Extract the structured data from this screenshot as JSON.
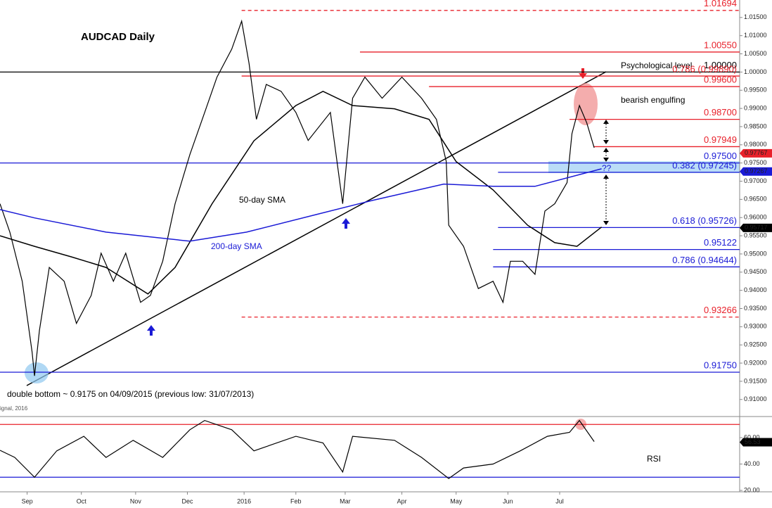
{
  "chart_data": [
    {
      "type": "line",
      "title": "AUDCAD Daily",
      "xlim": [
        0,
        300
      ],
      "ylim": [
        0.9057,
        1.0198
      ],
      "yticks": [
        {
          "value": 0.91,
          "label": "0.91000"
        },
        {
          "value": 0.915,
          "label": "0.91500"
        },
        {
          "value": 0.92,
          "label": "0.92000"
        },
        {
          "value": 0.925,
          "label": "0.92500"
        },
        {
          "value": 0.93,
          "label": "0.93000"
        },
        {
          "value": 0.935,
          "label": "0.93500"
        },
        {
          "value": 0.94,
          "label": "0.94000"
        },
        {
          "value": 0.945,
          "label": "0.94500"
        },
        {
          "value": 0.95,
          "label": "0.95000"
        },
        {
          "value": 0.955,
          "label": "0.95500"
        },
        {
          "value": 0.96,
          "label": "0.96000"
        },
        {
          "value": 0.965,
          "label": "0.96500"
        },
        {
          "value": 0.97,
          "label": "0.97000"
        },
        {
          "value": 0.975,
          "label": "0.97500"
        },
        {
          "value": 0.98,
          "label": "0.98000"
        },
        {
          "value": 0.985,
          "label": "0.98500"
        },
        {
          "value": 0.99,
          "label": "0.99000"
        },
        {
          "value": 0.995,
          "label": "0.99500"
        },
        {
          "value": 1.0,
          "label": "1.00000"
        },
        {
          "value": 1.005,
          "label": "1.00500"
        },
        {
          "value": 1.01,
          "label": "1.01000"
        },
        {
          "value": 1.015,
          "label": "1.01500"
        }
      ],
      "series": [
        {
          "color": "#000000",
          "x": [
            0,
            4,
            9,
            13,
            14,
            16,
            20,
            26,
            31,
            37,
            41,
            46,
            51,
            57,
            61,
            66,
            71,
            77,
            83,
            88,
            94,
            98,
            101,
            104,
            108,
            114,
            120,
            125,
            134,
            139,
            143,
            148,
            155,
            163,
            171,
            177,
            181,
            182,
            188,
            194,
            200,
            204,
            207,
            212,
            217,
            221,
            225,
            230,
            232,
            235,
            238,
            241
          ],
          "values": [
            0.9638,
            0.956,
            0.9425,
            0.9231,
            0.9165,
            0.929,
            0.9463,
            0.9425,
            0.9309,
            0.9386,
            0.9502,
            0.9425,
            0.9502,
            0.9367,
            0.9386,
            0.948,
            0.9638,
            0.9773,
            0.9889,
            0.9986,
            1.0063,
            1.014,
            1.0024,
            0.987,
            0.9966,
            0.9947,
            0.9889,
            0.9812,
            0.9889,
            0.9638,
            0.9928,
            0.9986,
            0.9928,
            0.9986,
            0.9928,
            0.987,
            0.9754,
            0.9579,
            0.9521,
            0.9405,
            0.9425,
            0.9367,
            0.948,
            0.948,
            0.9444,
            0.9618,
            0.9638,
            0.9696,
            0.9831,
            0.9908,
            0.986,
            0.9792
          ]
        },
        {
          "name": "50-day SMA",
          "color": "#000000",
          "x": [
            0,
            14,
            29,
            43,
            60,
            71,
            86,
            103,
            120,
            131,
            143,
            160,
            174,
            185,
            200,
            214,
            225,
            234,
            244
          ],
          "values": [
            0.955,
            0.9521,
            0.9492,
            0.9463,
            0.939,
            0.9463,
            0.9638,
            0.9811,
            0.9908,
            0.9947,
            0.9908,
            0.9899,
            0.987,
            0.9754,
            0.9676,
            0.9579,
            0.9531,
            0.9521,
            0.9574
          ]
        },
        {
          "name": "200-day SMA",
          "color": "#1a1ad6",
          "x": [
            0,
            14,
            43,
            77,
            100,
            128,
            151,
            180,
            200,
            217,
            244
          ],
          "values": [
            0.9622,
            0.9599,
            0.956,
            0.9535,
            0.956,
            0.9608,
            0.9647,
            0.9692,
            0.9686,
            0.9686,
            0.9734
          ]
        }
      ],
      "levels": [
        {
          "value": 1.01694,
          "label": "1.01694",
          "color": "#e8202a",
          "from": 98,
          "dashed": true
        },
        {
          "value": 1.0055,
          "label": "1.00550",
          "color": "#e8202a",
          "from": 146,
          "dashed": false
        },
        {
          "value": 1.0,
          "label": "1.00000",
          "color": "#000000",
          "from": 0,
          "dashed": false
        },
        {
          "value": 0.9989,
          "label": "0.786 (0.99890)",
          "color": "#e8202a",
          "from": 98,
          "dashed": false
        },
        {
          "value": 0.996,
          "label": "0.99600",
          "color": "#e8202a",
          "from": 174,
          "dashed": false
        },
        {
          "value": 0.987,
          "label": "0.98700",
          "color": "#e8202a",
          "from": 231,
          "dashed": false
        },
        {
          "value": 0.97949,
          "label": "0.97949",
          "color": "#e8202a",
          "from": 241,
          "dashed": false
        },
        {
          "value": 0.975,
          "label": "0.97500",
          "color": "#1a1ad6",
          "from": 0,
          "dashed": false
        },
        {
          "value": 0.97245,
          "label": "0.382 (0.97245)",
          "color": "#1a1ad6",
          "from": 202,
          "dashed": false
        },
        {
          "value": 0.95726,
          "label": "0.618 (0.95726)",
          "color": "#1a1ad6",
          "from": 202,
          "dashed": false
        },
        {
          "value": 0.95122,
          "label": "0.95122",
          "color": "#1a1ad6",
          "from": 200,
          "dashed": false
        },
        {
          "value": 0.94644,
          "label": "0.786 (0.94644)",
          "color": "#1a1ad6",
          "from": 200,
          "dashed": false
        },
        {
          "value": 0.93266,
          "label": "0.93266",
          "color": "#e8202a",
          "from": 98,
          "dashed": true
        },
        {
          "value": 0.9175,
          "label": "0.91750",
          "color": "#1a1ad6",
          "from": 0,
          "dashed": false
        }
      ],
      "price_tags": [
        {
          "value": 0.97767,
          "label": "0.97767",
          "color": "#e8202a"
        },
        {
          "value": 0.97267,
          "label": "0.97267",
          "color": "#1a1ad6"
        },
        {
          "value": 0.95717,
          "label": "0.95717",
          "color": "#000000"
        }
      ],
      "level_note": "Psychological level",
      "pattern_note": "bearish engulfing",
      "question": "??",
      "double_bottom_note": "double bottom ~ 0.9175 on 04/09/2015 (previous low: 31/07/2013)",
      "source": "ignal, 2016"
    },
    {
      "type": "line",
      "title": "RSI",
      "xlim": [
        0,
        300
      ],
      "ylim": [
        20,
        74.4
      ],
      "xticks": [
        {
          "value": 11,
          "label": "Sep"
        },
        {
          "value": 33,
          "label": "Oct"
        },
        {
          "value": 55,
          "label": "Nov"
        },
        {
          "value": 76,
          "label": "Dec"
        },
        {
          "value": 99,
          "label": "2016"
        },
        {
          "value": 120,
          "label": "Feb"
        },
        {
          "value": 140,
          "label": "Mar"
        },
        {
          "value": 163,
          "label": "Apr"
        },
        {
          "value": 185,
          "label": "May"
        },
        {
          "value": 206,
          "label": "Jun"
        },
        {
          "value": 227,
          "label": "Jul"
        }
      ],
      "yticks": [
        {
          "value": 20,
          "label": "20.00"
        },
        {
          "value": 40,
          "label": "40.00"
        },
        {
          "value": 60,
          "label": "60.00"
        }
      ],
      "series": [
        {
          "color": "#000000",
          "x": [
            0,
            6,
            14,
            23,
            34,
            43,
            54,
            66,
            77,
            83,
            94,
            103,
            120,
            131,
            139,
            143,
            160,
            171,
            182,
            188,
            200,
            211,
            222,
            231,
            235,
            241
          ],
          "values": [
            50.4,
            45,
            30,
            50,
            61,
            45,
            58,
            45,
            66,
            73,
            66,
            50,
            61,
            56,
            34,
            61,
            58,
            45,
            29,
            37,
            40,
            50,
            61,
            64,
            73,
            57
          ]
        }
      ],
      "levels": [
        {
          "value": 70,
          "color": "#e8202a"
        },
        {
          "value": 30,
          "color": "#1a1ad6"
        }
      ],
      "price_tags": [
        {
          "value": 56.53,
          "label": "56.53",
          "color": "#000000"
        }
      ]
    }
  ]
}
